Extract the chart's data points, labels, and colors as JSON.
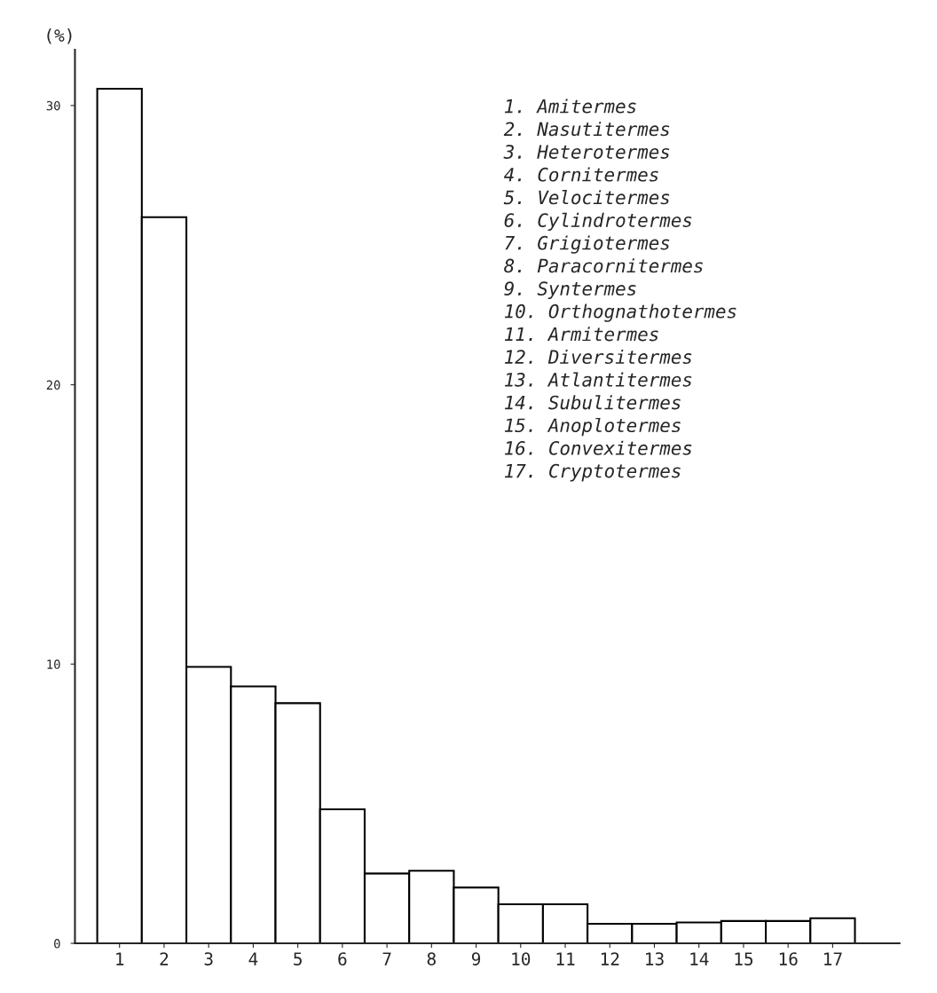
{
  "chart_data": {
    "type": "bar",
    "ylabel": "(%)",
    "categories": [
      "1",
      "2",
      "3",
      "4",
      "5",
      "6",
      "7",
      "8",
      "9",
      "10",
      "11",
      "12",
      "13",
      "14",
      "15",
      "16",
      "17"
    ],
    "values": [
      30.6,
      26.0,
      9.9,
      9.2,
      8.6,
      4.8,
      2.5,
      2.6,
      2.0,
      1.4,
      1.4,
      0.7,
      0.7,
      0.75,
      0.8,
      0.8,
      0.9
    ],
    "color": "#ffffff",
    "ylim": [
      0,
      32
    ],
    "yticks": [
      0,
      10,
      20,
      30
    ],
    "grid": false,
    "annotations": [
      "1. Amitermes",
      "2. Nasutitermes",
      "3. Heterotermes",
      "4. Cornitermes",
      "5. Velocitermes",
      "6. Cylindrotermes",
      "7. Grigiotermes",
      "8. Paracornitermes",
      "9. Syntermes",
      "10. Orthognathotermes",
      "11. Armitermes",
      "12. Diversitermes",
      "13. Atlantitermes",
      "14. Subulitermes",
      "15. Anoplotermes",
      "16. Convexitermes",
      "17. Cryptotermes"
    ]
  }
}
